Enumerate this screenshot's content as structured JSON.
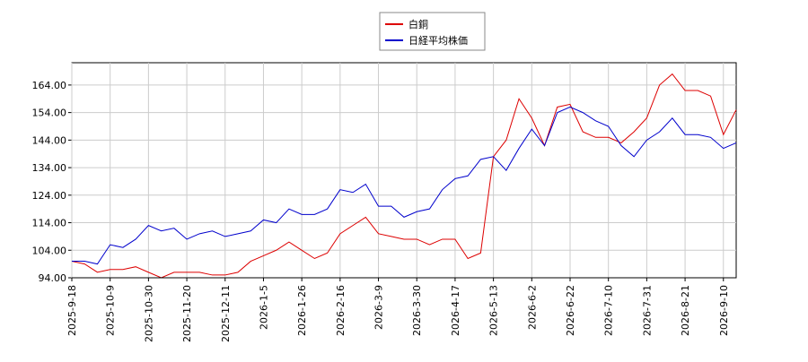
{
  "chart_data": {
    "type": "line",
    "categories": [
      "2025-9-18",
      null,
      null,
      "2025-10-9",
      null,
      null,
      "2025-10-30",
      null,
      null,
      "2025-11-20",
      null,
      null,
      "2025-12-11",
      null,
      null,
      "2026-1-5",
      null,
      null,
      "2026-1-26",
      null,
      null,
      "2026-2-16",
      null,
      null,
      "2026-3-9",
      null,
      null,
      "2026-3-30",
      null,
      null,
      "2026-4-17",
      null,
      null,
      "2026-5-13",
      null,
      null,
      "2026-6-2",
      null,
      null,
      "2026-6-22",
      null,
      null,
      "2026-7-10",
      null,
      null,
      "2026-7-31",
      null,
      null,
      "2026-8-21",
      null,
      null,
      "2026-9-10",
      null
    ],
    "series": [
      {
        "name": "白銅",
        "color": "#dd0000",
        "values": [
          100,
          99,
          96,
          97,
          97,
          98,
          96,
          94,
          96,
          96,
          96,
          95,
          95,
          96,
          100,
          102,
          104,
          107,
          104,
          101,
          103,
          110,
          113,
          116,
          110,
          109,
          108,
          108,
          106,
          108,
          108,
          101,
          103,
          138,
          144,
          159,
          152,
          142,
          156,
          157,
          147,
          145,
          145,
          143,
          147,
          152,
          164,
          168,
          162,
          162,
          160,
          146,
          155
        ]
      },
      {
        "name": "日経平均株価",
        "color": "#0000cc",
        "values": [
          100,
          100,
          99,
          106,
          105,
          108,
          113,
          111,
          112,
          108,
          110,
          111,
          109,
          110,
          111,
          115,
          114,
          119,
          117,
          117,
          119,
          126,
          125,
          128,
          120,
          120,
          116,
          118,
          119,
          126,
          130,
          131,
          137,
          138,
          133,
          141,
          148,
          142,
          154,
          156,
          154,
          151,
          149,
          142,
          138,
          144,
          147,
          152,
          146,
          146,
          145,
          141,
          143
        ]
      }
    ],
    "ylim": [
      94,
      172.1
    ],
    "yticks": [
      {
        "value": 94,
        "label": "94.00"
      },
      {
        "value": 104,
        "label": "104.00"
      },
      {
        "value": 114,
        "label": "114.00"
      },
      {
        "value": 124,
        "label": "124.00"
      },
      {
        "value": 134,
        "label": "134.00"
      },
      {
        "value": 144,
        "label": "144.00"
      },
      {
        "value": 154,
        "label": "154.00"
      },
      {
        "value": 164,
        "label": "164.00"
      }
    ],
    "grid": true,
    "legend": "top"
  }
}
